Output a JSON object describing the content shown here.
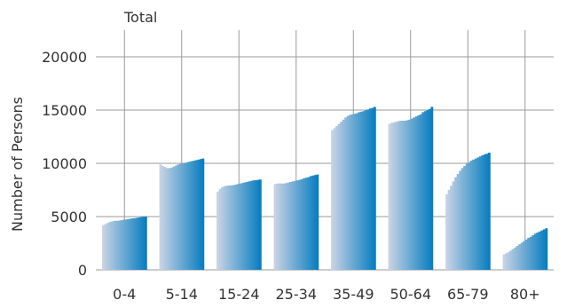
{
  "chart_data": {
    "type": "bar",
    "title": "Total",
    "xlabel": "",
    "ylabel": "Number of Persons",
    "ylim": [
      0,
      22500
    ],
    "yticks": [
      0,
      5000,
      10000,
      15000,
      20000
    ],
    "ytick_labels": [
      "0",
      "5000",
      "10000",
      "15000",
      "20000"
    ],
    "grid": true,
    "categories": [
      "0-4",
      "5-14",
      "15-24",
      "25-34",
      "35-49",
      "50-64",
      "65-79",
      "80+"
    ],
    "groups": [
      {
        "category": "0-4",
        "values": [
          4200,
          4300,
          4400,
          4500,
          4550,
          4600,
          4600,
          4620,
          4650,
          4700,
          4720,
          4750,
          4800,
          4830,
          4850,
          4880,
          4920,
          4950,
          4980,
          5000
        ]
      },
      {
        "category": "5-14",
        "values": [
          9900,
          9750,
          9650,
          9550,
          9550,
          9600,
          9700,
          9800,
          9900,
          9950,
          10000,
          10050,
          10100,
          10150,
          10200,
          10250,
          10300,
          10350,
          10400,
          10450
        ]
      },
      {
        "category": "15-24",
        "values": [
          7350,
          7600,
          7750,
          7850,
          7900,
          7920,
          7930,
          7950,
          8000,
          8050,
          8100,
          8150,
          8200,
          8250,
          8300,
          8350,
          8400,
          8420,
          8450,
          8480
        ]
      },
      {
        "category": "25-34",
        "values": [
          8050,
          8100,
          8120,
          8100,
          8100,
          8150,
          8200,
          8250,
          8300,
          8350,
          8400,
          8450,
          8500,
          8600,
          8650,
          8700,
          8800,
          8850,
          8900,
          8950
        ]
      },
      {
        "category": "35-49",
        "values": [
          13100,
          13300,
          13500,
          13700,
          13900,
          14100,
          14300,
          14450,
          14550,
          14600,
          14650,
          14700,
          14800,
          14850,
          14900,
          15000,
          15050,
          15150,
          15200,
          15300
        ]
      },
      {
        "category": "50-64",
        "values": [
          13700,
          13800,
          13850,
          13900,
          13950,
          14000,
          14000,
          14000,
          14050,
          14100,
          14200,
          14300,
          14400,
          14500,
          14600,
          14800,
          14900,
          15000,
          15100,
          15300
        ]
      },
      {
        "category": "65-79",
        "values": [
          7100,
          7500,
          7900,
          8300,
          8700,
          9000,
          9300,
          9550,
          9750,
          9950,
          10100,
          10250,
          10350,
          10450,
          10550,
          10650,
          10750,
          10850,
          10900,
          11000
        ]
      },
      {
        "category": "80+",
        "values": [
          1450,
          1550,
          1650,
          1800,
          1950,
          2100,
          2250,
          2400,
          2550,
          2700,
          2850,
          3000,
          3100,
          3250,
          3400,
          3500,
          3600,
          3700,
          3800,
          3900
        ]
      }
    ],
    "colors": {
      "light": "#c7d2e4",
      "dark": "#0a7fc0",
      "grid": "#9a9a9a",
      "text": "#333333"
    }
  }
}
